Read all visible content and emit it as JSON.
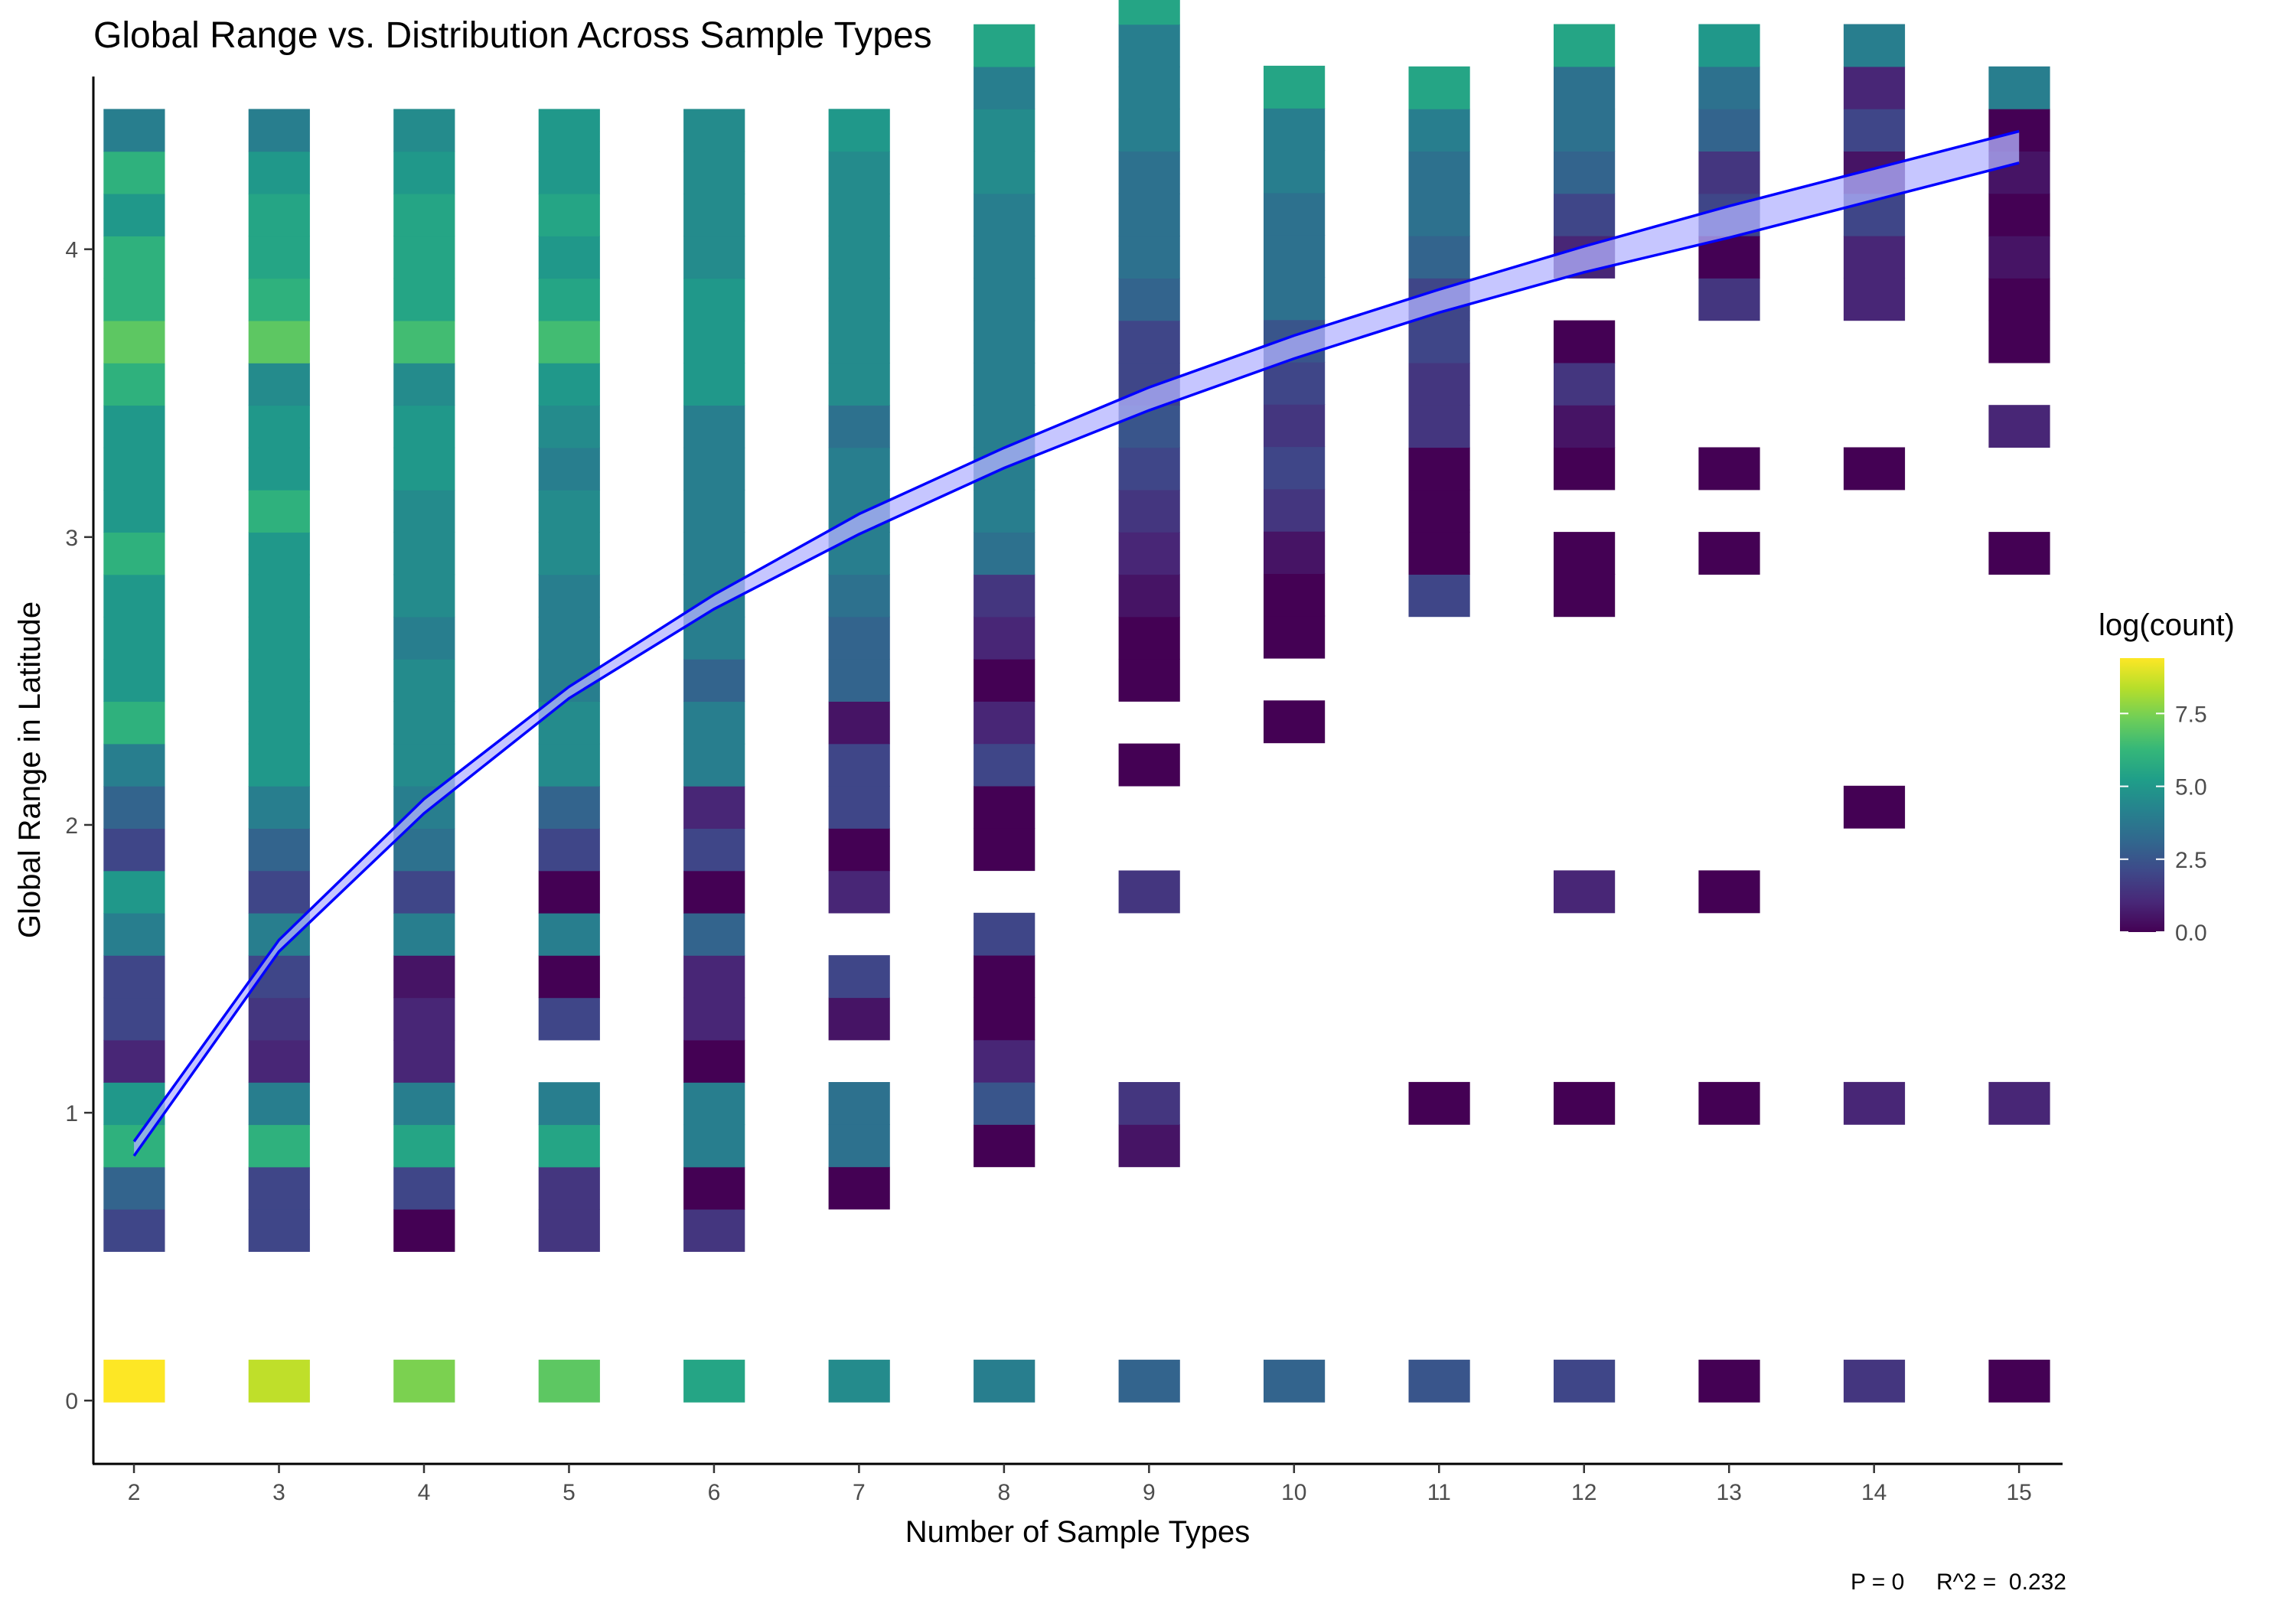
{
  "chart_data": {
    "type": "heatmap",
    "title": "Global Range vs. Distribution Across Sample Types",
    "xlabel": "Number of Sample Types",
    "ylabel": "Global Range in Latitude",
    "xlim": [
      1.72,
      15.3
    ],
    "ylim": [
      -0.22,
      4.6
    ],
    "x_ticks": [
      2,
      3,
      4,
      5,
      6,
      7,
      8,
      9,
      10,
      11,
      12,
      13,
      14,
      15
    ],
    "y_ticks": [
      0,
      1,
      2,
      3,
      4
    ],
    "bin_width": 0.42,
    "bin_height": 0.147,
    "legend": {
      "title": "log(count)",
      "position": "right",
      "ticks": [
        0.0,
        2.5,
        5.0,
        7.5
      ],
      "tick_labels": [
        "0.0",
        "2.5",
        "5.0",
        "7.5"
      ],
      "range": [
        0,
        9.4
      ]
    },
    "caption": "P = 0     R^2 =  0.232",
    "columns": [
      {
        "x": 2,
        "ystart": 0.5182,
        "values": [
          2.0,
          3.0,
          6.0,
          5.0,
          1.0,
          2.0,
          2.0,
          4.0,
          5.0,
          2.0,
          3.0,
          4.0,
          6.0,
          5.0,
          5.0,
          5.0,
          6.0,
          5.0,
          5.0,
          5.0,
          6.0,
          7.0,
          6.0,
          6.0,
          5.0,
          6.0,
          4.0
        ],
        "zero": 9.4
      },
      {
        "x": 3,
        "ystart": 0.5182,
        "values": [
          2.0,
          2.0,
          6.0,
          4.0,
          1.0,
          1.5,
          2.0,
          4.0,
          2.0,
          3.0,
          4.0,
          5.0,
          5.0,
          5.0,
          5.0,
          5.0,
          5.0,
          6.0,
          5.0,
          5.0,
          4.5,
          7.0,
          6.0,
          5.5,
          5.5,
          5.0,
          4.0
        ],
        "zero": 8.5
      },
      {
        "x": 4,
        "ystart": 0.5182,
        "values": [
          0.0,
          2.0,
          5.5,
          4.0,
          1.0,
          1.0,
          0.5,
          4.0,
          2.0,
          3.5,
          4.0,
          4.5,
          4.5,
          4.5,
          4.0,
          4.5,
          4.5,
          4.5,
          5.0,
          5.0,
          4.5,
          6.5,
          5.5,
          5.5,
          5.5,
          5.0,
          4.5
        ],
        "zero": 7.5
      },
      {
        "x": 5,
        "ystart": 0.5182,
        "values": [
          1.5,
          1.5,
          5.5,
          4.0,
          null,
          2.0,
          0.0,
          4.0,
          0.0,
          2.0,
          3.0,
          4.5,
          4.5,
          4.0,
          4.0,
          4.0,
          4.5,
          4.5,
          4.0,
          4.5,
          5.0,
          6.5,
          5.5,
          5.0,
          5.5,
          5.0,
          5.0
        ],
        "zero": 7.0
      },
      {
        "x": 6,
        "ystart": 0.5182,
        "values": [
          1.5,
          0.0,
          4.0,
          4.0,
          0.0,
          1.0,
          1.0,
          3.0,
          0.0,
          2.0,
          1.0,
          4.0,
          4.0,
          3.0,
          4.0,
          4.0,
          4.0,
          4.0,
          4.0,
          4.0,
          5.0,
          5.0,
          5.0,
          4.5,
          4.5,
          4.5,
          4.5
        ],
        "zero": 5.5
      },
      {
        "x": 7,
        "ystart": 0.6655,
        "values": [
          0.0,
          3.5,
          3.5,
          null,
          0.5,
          2.0,
          null,
          1.0,
          0.0,
          2.0,
          2.0,
          0.5,
          3.0,
          3.0,
          3.5,
          4.0,
          4.0,
          4.0,
          3.5,
          4.5,
          4.5,
          4.5,
          4.5,
          4.5,
          4.5,
          5.0
        ],
        "zero": 4.5
      },
      {
        "x": 8,
        "ystart": 0.8127,
        "values": [
          0.0,
          2.5,
          1.0,
          0.0,
          0.0,
          2.0,
          null,
          0.0,
          0.0,
          2.0,
          1.0,
          0.0,
          1.0,
          1.5,
          3.5,
          4.0,
          4.0,
          4.0,
          4.0,
          4.0,
          4.0,
          4.0,
          4.0,
          4.5,
          4.5,
          4.0,
          5.5
        ],
        "zero": 4.0
      },
      {
        "x": 9,
        "ystart": 0.8127,
        "values": [
          0.5,
          1.5,
          null,
          null,
          null,
          null,
          1.5,
          null,
          null,
          0.0,
          null,
          0.0,
          0.0,
          0.5,
          1.0,
          1.5,
          2.0,
          2.5,
          2.0,
          2.0,
          3.0,
          3.5,
          3.5,
          3.5,
          4.0,
          4.0,
          4.0,
          5.5
        ],
        "zero": 3.0
      },
      {
        "x": 10,
        "ystart": 2.2855,
        "values": [
          0.0,
          null,
          0.0,
          0.0,
          0.5,
          1.5,
          2.0,
          1.5,
          2.0,
          2.5,
          3.5,
          3.5,
          3.5,
          4.0,
          4.0,
          5.5
        ],
        "zero": 3.0
      },
      {
        "x": 11,
        "ystart": 0.96,
        "values": [
          0.0,
          null,
          null,
          null,
          null,
          null,
          null,
          null,
          null,
          null,
          null,
          null,
          2.0,
          0.0,
          0.0,
          0.0,
          1.5,
          1.5,
          2.0,
          2.0,
          3.0,
          3.5,
          3.5,
          4.0,
          5.5
        ],
        "zero": 2.5
      },
      {
        "x": 12,
        "ystart": 0.96,
        "values": [
          0.0,
          null,
          null,
          null,
          null,
          1.0,
          null,
          null,
          null,
          null,
          null,
          null,
          0.0,
          0.0,
          null,
          0.0,
          0.5,
          1.5,
          0.0,
          null,
          1.0,
          2.0,
          3.0,
          3.5,
          3.5,
          5.5
        ],
        "zero": 2.0
      },
      {
        "x": 13,
        "ystart": 0.96,
        "values": [
          0.0,
          null,
          null,
          null,
          null,
          0.0,
          null,
          null,
          null,
          null,
          null,
          null,
          null,
          0.0,
          null,
          0.0,
          null,
          null,
          null,
          1.5,
          0.0,
          2.0,
          1.5,
          3.0,
          3.5,
          5.0
        ],
        "zero": 0.0
      },
      {
        "x": 14,
        "ystart": 0.96,
        "values": [
          1.0,
          null,
          null,
          null,
          null,
          null,
          null,
          0.0,
          null,
          null,
          null,
          null,
          null,
          null,
          null,
          0.0,
          null,
          null,
          null,
          1.0,
          1.0,
          2.0,
          0.5,
          2.0,
          1.0,
          4.0
        ],
        "zero": 1.5
      },
      {
        "x": 15,
        "ystart": 0.96,
        "values": [
          1.0,
          null,
          null,
          null,
          null,
          null,
          null,
          null,
          null,
          null,
          null,
          null,
          null,
          0.0,
          null,
          null,
          1.0,
          null,
          0.0,
          0.0,
          0.5,
          0.0,
          0.5,
          0.0,
          4.0
        ],
        "zero": 0.0
      }
    ],
    "fit_line": {
      "name": "",
      "color": "#0000ff",
      "x": [
        2,
        3,
        4,
        5,
        6,
        7,
        8,
        9,
        10,
        11,
        12,
        13,
        14,
        15
      ],
      "y_upper": [
        0.9,
        1.6,
        2.09,
        2.48,
        2.8,
        3.08,
        3.31,
        3.52,
        3.7,
        3.86,
        4.01,
        4.15,
        4.28,
        4.41
      ],
      "y_lower": [
        0.85,
        1.56,
        2.04,
        2.44,
        2.75,
        3.01,
        3.24,
        3.44,
        3.62,
        3.78,
        3.92,
        4.04,
        4.17,
        4.3
      ]
    }
  }
}
